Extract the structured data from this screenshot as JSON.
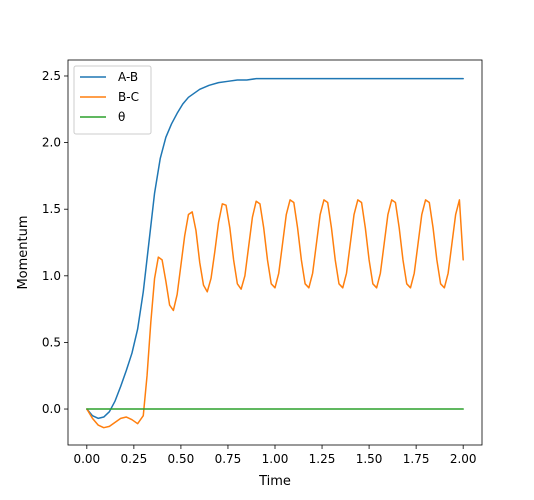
{
  "chart_data": {
    "type": "line",
    "xlabel": "Time",
    "ylabel": "Momentum",
    "xlim": [
      -0.1,
      2.1
    ],
    "ylim": [
      -0.27,
      2.62
    ],
    "xticks": [
      0.0,
      0.25,
      0.5,
      0.75,
      1.0,
      1.25,
      1.5,
      1.75,
      2.0
    ],
    "xtick_labels": [
      "0.00",
      "0.25",
      "0.50",
      "0.75",
      "1.00",
      "1.25",
      "1.50",
      "1.75",
      "2.00"
    ],
    "yticks": [
      0.0,
      0.5,
      1.0,
      1.5,
      2.0,
      2.5
    ],
    "ytick_labels": [
      "0.0",
      "0.5",
      "1.0",
      "1.5",
      "2.0",
      "2.5"
    ],
    "grid": false,
    "legend_position": "top-left",
    "series": [
      {
        "name": "A-B",
        "color": "#1f77b4",
        "x": [
          0.0,
          0.03,
          0.06,
          0.09,
          0.12,
          0.15,
          0.18,
          0.21,
          0.24,
          0.27,
          0.3,
          0.33,
          0.36,
          0.39,
          0.42,
          0.45,
          0.48,
          0.51,
          0.54,
          0.57,
          0.6,
          0.65,
          0.7,
          0.75,
          0.8,
          0.85,
          0.9,
          1.0,
          1.1,
          1.25,
          1.5,
          1.75,
          2.0
        ],
        "y": [
          0.0,
          -0.05,
          -0.07,
          -0.06,
          -0.02,
          0.06,
          0.17,
          0.29,
          0.42,
          0.6,
          0.88,
          1.25,
          1.62,
          1.88,
          2.04,
          2.14,
          2.22,
          2.29,
          2.34,
          2.37,
          2.4,
          2.43,
          2.45,
          2.46,
          2.47,
          2.47,
          2.48,
          2.48,
          2.48,
          2.48,
          2.48,
          2.48,
          2.48
        ]
      },
      {
        "name": "B-C",
        "color": "#ff7f0e",
        "x": [
          0.0,
          0.03,
          0.06,
          0.09,
          0.12,
          0.15,
          0.18,
          0.21,
          0.24,
          0.27,
          0.3,
          0.32,
          0.34,
          0.36,
          0.38,
          0.4,
          0.42,
          0.44,
          0.46,
          0.48,
          0.5,
          0.52,
          0.54,
          0.56,
          0.58,
          0.6,
          0.62,
          0.64,
          0.66,
          0.68,
          0.7,
          0.72,
          0.74,
          0.76,
          0.78,
          0.8,
          0.82,
          0.84,
          0.86,
          0.88,
          0.9,
          0.92,
          0.94,
          0.96,
          0.98,
          1.0,
          1.02,
          1.04,
          1.06,
          1.08,
          1.1,
          1.12,
          1.14,
          1.16,
          1.18,
          1.2,
          1.22,
          1.24,
          1.26,
          1.28,
          1.3,
          1.32,
          1.34,
          1.36,
          1.38,
          1.4,
          1.42,
          1.44,
          1.46,
          1.48,
          1.5,
          1.52,
          1.54,
          1.56,
          1.58,
          1.6,
          1.62,
          1.64,
          1.66,
          1.68,
          1.7,
          1.72,
          1.74,
          1.76,
          1.78,
          1.8,
          1.82,
          1.84,
          1.86,
          1.88,
          1.9,
          1.92,
          1.94,
          1.96,
          1.98,
          2.0
        ],
        "y": [
          0.0,
          -0.07,
          -0.12,
          -0.14,
          -0.13,
          -0.1,
          -0.07,
          -0.06,
          -0.08,
          -0.11,
          -0.05,
          0.25,
          0.65,
          0.98,
          1.14,
          1.12,
          0.96,
          0.78,
          0.74,
          0.86,
          1.08,
          1.3,
          1.46,
          1.48,
          1.34,
          1.1,
          0.93,
          0.88,
          0.98,
          1.18,
          1.4,
          1.54,
          1.53,
          1.36,
          1.12,
          0.94,
          0.9,
          1.0,
          1.22,
          1.44,
          1.56,
          1.54,
          1.36,
          1.12,
          0.94,
          0.91,
          1.02,
          1.24,
          1.46,
          1.57,
          1.55,
          1.36,
          1.12,
          0.94,
          0.91,
          1.02,
          1.24,
          1.46,
          1.57,
          1.55,
          1.36,
          1.12,
          0.94,
          0.91,
          1.02,
          1.24,
          1.46,
          1.57,
          1.55,
          1.36,
          1.12,
          0.94,
          0.91,
          1.02,
          1.24,
          1.46,
          1.57,
          1.55,
          1.36,
          1.12,
          0.94,
          0.91,
          1.02,
          1.24,
          1.46,
          1.57,
          1.55,
          1.36,
          1.12,
          0.94,
          0.91,
          1.02,
          1.24,
          1.46,
          1.57,
          1.12
        ]
      },
      {
        "name": "θ",
        "color": "#2ca02c",
        "x": [
          0.0,
          2.0
        ],
        "y": [
          0.0,
          0.0
        ]
      }
    ]
  }
}
